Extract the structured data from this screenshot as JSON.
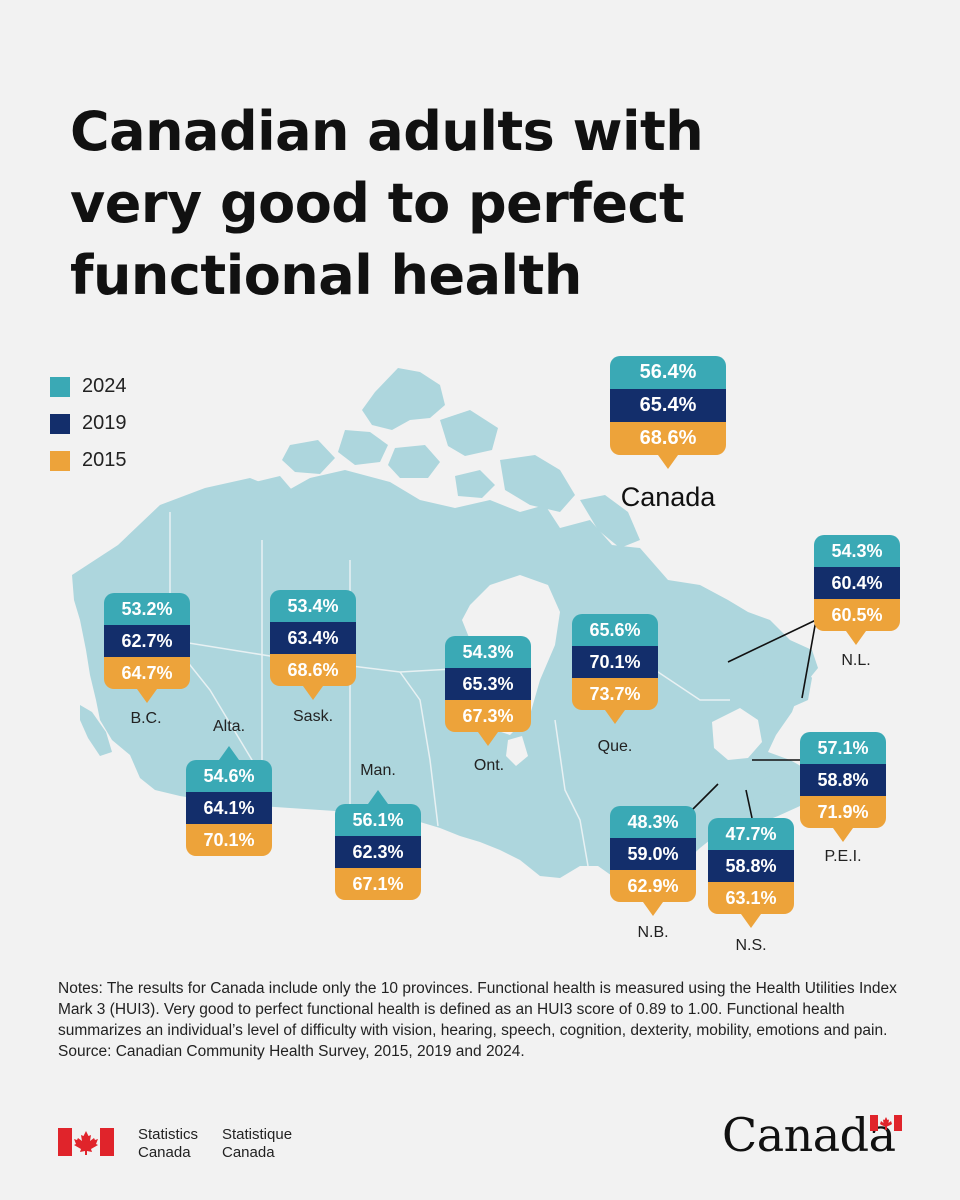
{
  "title_lines": [
    "Canadian adults with",
    "very good to perfect",
    "functional health"
  ],
  "legend": [
    {
      "label": "2024",
      "color": "#3aa9b5"
    },
    {
      "label": "2019",
      "color": "#132e6b"
    },
    {
      "label": "2015",
      "color": "#eda33a"
    }
  ],
  "regions": {
    "canada": {
      "label": "Canada",
      "v2024": "56.4%",
      "v2019": "65.4%",
      "v2015": "68.6%"
    },
    "bc": {
      "label": "B.C.",
      "v2024": "53.2%",
      "v2019": "62.7%",
      "v2015": "64.7%"
    },
    "alta": {
      "label": "Alta.",
      "v2024": "54.6%",
      "v2019": "64.1%",
      "v2015": "70.1%"
    },
    "sask": {
      "label": "Sask.",
      "v2024": "53.4%",
      "v2019": "63.4%",
      "v2015": "68.6%"
    },
    "man": {
      "label": "Man.",
      "v2024": "56.1%",
      "v2019": "62.3%",
      "v2015": "67.1%"
    },
    "ont": {
      "label": "Ont.",
      "v2024": "54.3%",
      "v2019": "65.3%",
      "v2015": "67.3%"
    },
    "que": {
      "label": "Que.",
      "v2024": "65.6%",
      "v2019": "70.1%",
      "v2015": "73.7%"
    },
    "nl": {
      "label": "N.L.",
      "v2024": "54.3%",
      "v2019": "60.4%",
      "v2015": "60.5%"
    },
    "pei": {
      "label": "P.E.I.",
      "v2024": "57.1%",
      "v2019": "58.8%",
      "v2015": "71.9%"
    },
    "nb": {
      "label": "N.B.",
      "v2024": "48.3%",
      "v2019": "59.0%",
      "v2015": "62.9%"
    },
    "ns": {
      "label": "N.S.",
      "v2024": "47.7%",
      "v2019": "58.8%",
      "v2015": "63.1%"
    }
  },
  "notes": [
    "Notes: The results for Canada include only the 10 provinces. Functional health is measured using the Health Utilities Index Mark 3 (HUI3). Very good to perfect functional health is defined as an HUI3 score of 0.89 to 1.00. Functional health summarizes an individual’s level of difficulty with vision, hearing, speech, cognition, dexterity, mobility, emotions and pain.",
    "Source: Canadian Community Health Survey, 2015, 2019 and 2024."
  ],
  "footer": {
    "agency_en_line1": "Statistics",
    "agency_en_line2": "Canada",
    "agency_fr_line1": "Statistique",
    "agency_fr_line2": "Canada",
    "wordmark": "Canada",
    "flag_color": "#e0242b"
  }
}
